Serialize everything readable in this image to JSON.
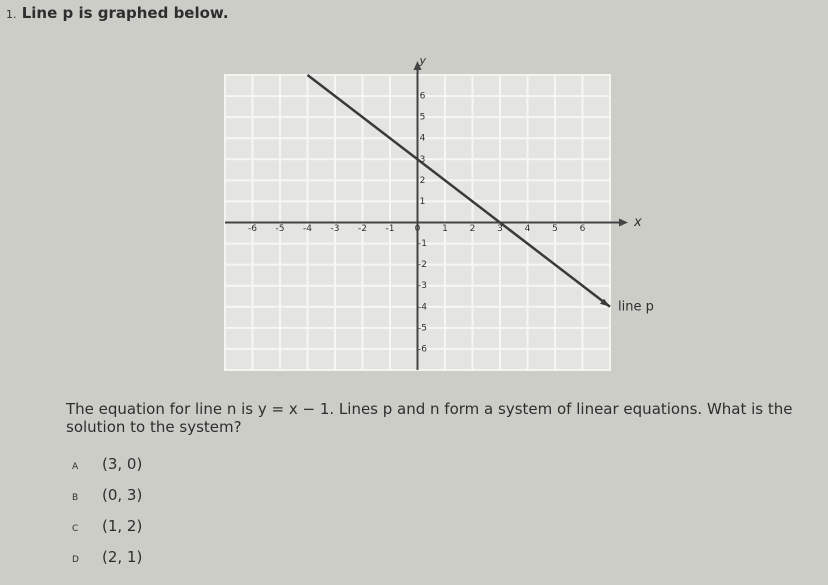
{
  "question": {
    "number": "1.",
    "prompt": "Line p is graphed below.",
    "text": "The equation for line n is y = x − 1. Lines p and n form a system of linear equations. What is the solution to the system?",
    "choices": [
      {
        "letter": "A",
        "text": "(3, 0)"
      },
      {
        "letter": "B",
        "text": "(0, 3)"
      },
      {
        "letter": "C",
        "text": "(1, 2)"
      },
      {
        "letter": "D",
        "text": "(2, 1)"
      }
    ]
  },
  "chart_data": {
    "type": "line",
    "x_label": "x",
    "y_label": "y",
    "x": [
      -4,
      7
    ],
    "series": [
      {
        "name": "line p",
        "color": "#3a3a3a",
        "values": [
          7,
          -4
        ]
      }
    ],
    "xlim": [
      -7,
      7
    ],
    "ylim": [
      -7,
      7
    ],
    "xticks": [
      -6,
      -5,
      -4,
      -3,
      -2,
      -1,
      0,
      1,
      2,
      3,
      4,
      5,
      6
    ],
    "yticks": [
      -6,
      -5,
      -4,
      -3,
      -2,
      -1,
      1,
      2,
      3,
      4,
      5,
      6
    ],
    "grid": true
  }
}
